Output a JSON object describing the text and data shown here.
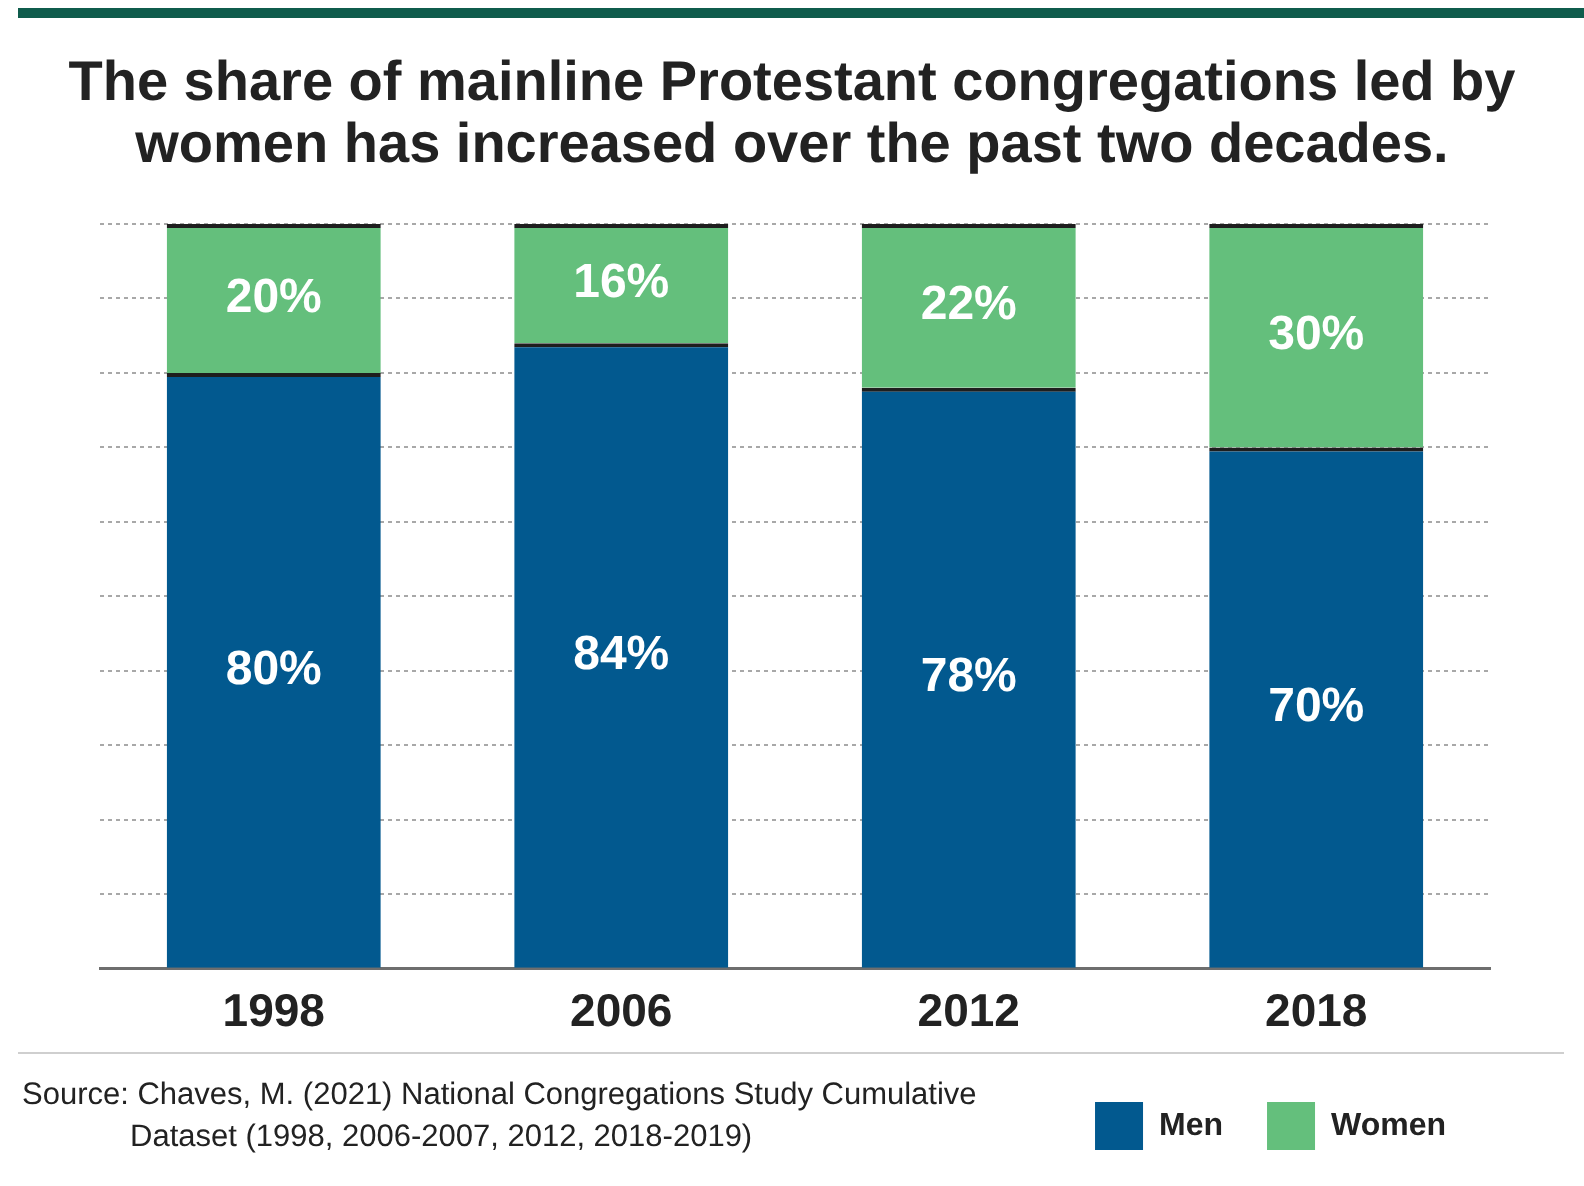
{
  "chart_data": {
    "type": "bar",
    "title": "The share of mainline Protestant congregations led by women has increased over the past two decades.",
    "categories": [
      "1998",
      "2006",
      "2012",
      "2018"
    ],
    "series": [
      {
        "name": "Men",
        "color": "#02598f",
        "values": [
          80,
          84,
          78,
          70
        ],
        "value_labels": [
          "80%",
          "84%",
          "78%",
          "70%"
        ]
      },
      {
        "name": "Women",
        "color": "#64bf7c",
        "values": [
          20,
          16,
          22,
          30
        ],
        "value_labels": [
          "20%",
          "16%",
          "22%",
          "30%"
        ]
      }
    ],
    "stacked": true,
    "ylim": [
      0,
      100
    ],
    "grid": "y",
    "tick_labels": "x",
    "legend": "bottom right",
    "annotations": [
      "Source: Chaves, M. (2021) National Congregations Study Cumulative Dataset (1998, 2006-2007, 2012, 2018-2019)"
    ]
  }
}
